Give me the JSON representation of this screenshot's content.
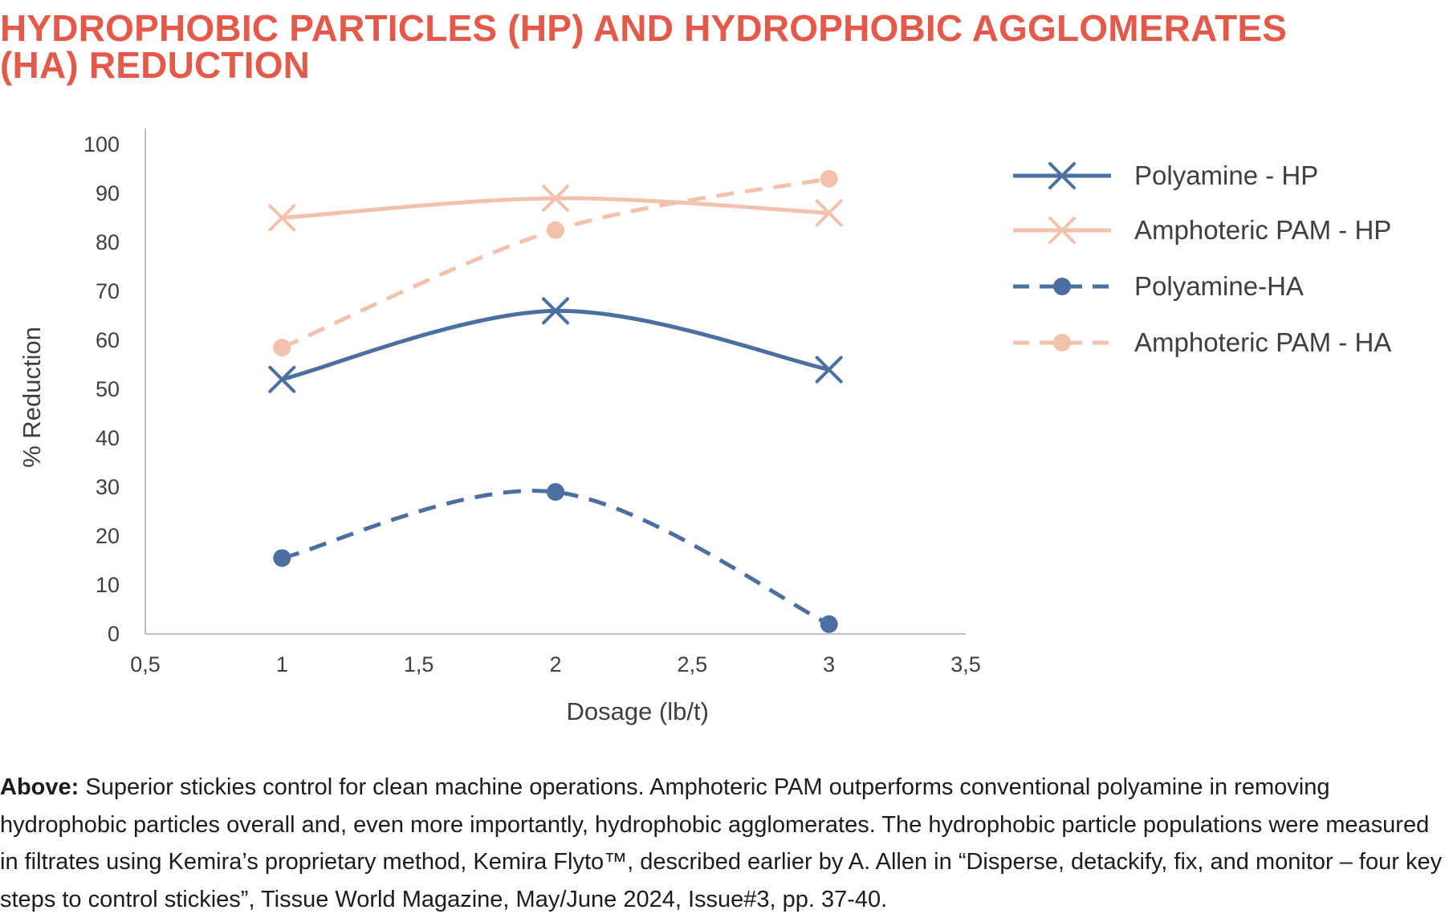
{
  "title": {
    "line1": "HYDROPHOBIC PARTICLES (HP) AND HYDROPHOBIC AGGLOMERATES",
    "line2": "(HA) REDUCTION"
  },
  "caption": {
    "lead": "Above:",
    "text": " Superior stickies control for clean machine operations. Amphoteric PAM outperforms conventional polyamine in removing hydrophobic particles overall and, even more importantly, hydrophobic agglomerates. The hydrophobic particle populations were measured in filtrates using Kemira’s proprietary method, Kemira Flyto™, described earlier by A. Allen in “Disperse, detackify, fix, and monitor – four key steps to control stickies”, Tissue World Magazine, May/June 2024, Issue#3, pp. 37-40."
  },
  "colors": {
    "title": "#e35a4a",
    "blue": "#4a6fa0",
    "peach": "#f3c2ac",
    "axis": "#bfbfbf"
  },
  "chart_data": {
    "type": "line",
    "xlabel": "Dosage (lb/t)",
    "ylabel": "% Reduction",
    "xlim": [
      0.5,
      3.5
    ],
    "ylim": [
      0,
      100
    ],
    "xticks": [
      0.5,
      1,
      1.5,
      2,
      2.5,
      3,
      3.5
    ],
    "xtick_labels": [
      "0,5",
      "1",
      "1,5",
      "2",
      "2,5",
      "3",
      "3,5"
    ],
    "yticks": [
      0,
      10,
      20,
      30,
      40,
      50,
      60,
      70,
      80,
      90,
      100
    ],
    "ytick_labels": [
      "0",
      "10",
      "20",
      "30",
      "40",
      "50",
      "60",
      "70",
      "80",
      "90",
      "100"
    ],
    "grid": false,
    "legend": "right",
    "series": [
      {
        "name": "Polyamine - HP",
        "x": [
          1,
          2,
          3
        ],
        "y": [
          52,
          66,
          54
        ],
        "color": "#4a6fa0",
        "dash": false,
        "marker": "x"
      },
      {
        "name": "Amphoteric PAM - HP",
        "x": [
          1,
          2,
          3
        ],
        "y": [
          85,
          89,
          86
        ],
        "color": "#f3c2ac",
        "dash": false,
        "marker": "x"
      },
      {
        "name": "Polyamine-HA",
        "x": [
          1,
          2,
          3
        ],
        "y": [
          15.5,
          29,
          2
        ],
        "color": "#4a6fa0",
        "dash": true,
        "marker": "circle"
      },
      {
        "name": "Amphoteric PAM - HA",
        "x": [
          1,
          2,
          3
        ],
        "y": [
          58.5,
          82.5,
          93
        ],
        "color": "#f3c2ac",
        "dash": true,
        "marker": "circle"
      }
    ]
  }
}
